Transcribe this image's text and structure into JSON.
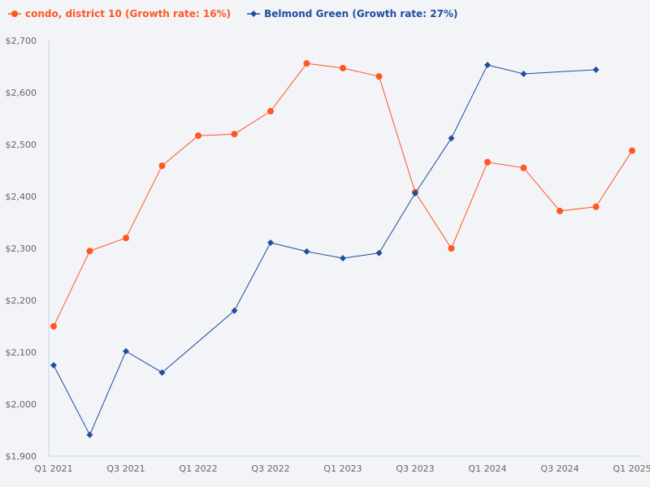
{
  "chart_data": {
    "type": "line",
    "title": "",
    "xlabel": "",
    "ylabel": "",
    "ylim": [
      1900,
      2700
    ],
    "yticks": [
      "$1,900",
      "$2,000",
      "$2,100",
      "$2,200",
      "$2,300",
      "$2,400",
      "$2,500",
      "$2,600",
      "$2,700"
    ],
    "ytick_values": [
      1900,
      2000,
      2100,
      2200,
      2300,
      2400,
      2500,
      2600,
      2700
    ],
    "categories": [
      "Q1 2021",
      "Q2 2021",
      "Q3 2021",
      "Q4 2021",
      "Q1 2022",
      "Q2 2022",
      "Q3 2022",
      "Q4 2022",
      "Q1 2023",
      "Q2 2023",
      "Q3 2023",
      "Q4 2023",
      "Q1 2024",
      "Q2 2024",
      "Q3 2024",
      "Q4 2024",
      "Q1 2025"
    ],
    "xtick_labels": [
      "Q1 2021",
      "Q3 2021",
      "Q1 2022",
      "Q3 2022",
      "Q1 2023",
      "Q3 2023",
      "Q1 2024",
      "Q3 2024",
      "Q1 2025"
    ],
    "grid": false,
    "legend_position": "top-left",
    "series": [
      {
        "name": "condo, district 10 (Growth rate: 16%)",
        "color": "#ff5722",
        "marker": "circle",
        "values": [
          2150,
          2295,
          2320,
          2459,
          2517,
          2520,
          2564,
          2656,
          2647,
          2631,
          2408,
          2300,
          2466,
          2455,
          2372,
          2380,
          2488
        ]
      },
      {
        "name": "Belmond Green (Growth rate: 27%)",
        "color": "#1f4e9c",
        "marker": "diamond",
        "values": [
          2075,
          1941,
          2102,
          2061,
          null,
          2180,
          2311,
          2294,
          2281,
          2291,
          2406,
          2512,
          2653,
          2636,
          null,
          2644,
          null
        ]
      }
    ]
  }
}
